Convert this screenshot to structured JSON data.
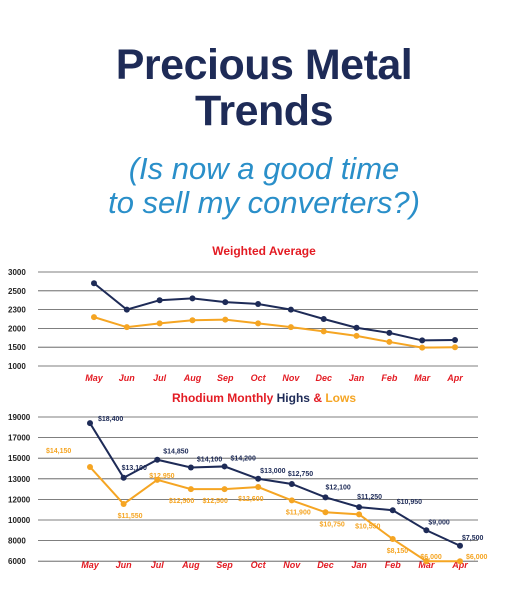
{
  "header": {
    "title_line1": "Precious Metal",
    "title_line2": "Trends",
    "subtitle_line1": "(Is now a good time",
    "subtitle_line2": "to sell my converters?)"
  },
  "colors": {
    "navy": "#1e2b57",
    "orange": "#f5a523",
    "red": "#e31b23",
    "blue": "#2a8fc9",
    "grid": "#555555"
  },
  "chart_data": [
    {
      "type": "line",
      "title": "Weighted Average",
      "categories": [
        "May",
        "Jun",
        "Jul",
        "Aug",
        "Sep",
        "Oct",
        "Nov",
        "Dec",
        "Jan",
        "Feb",
        "Mar",
        "Apr"
      ],
      "yticks": [
        "3000",
        "2500",
        "2300",
        "2000",
        "1500",
        "1000"
      ],
      "series": [
        {
          "color": "#1e2b57",
          "values": [
            2700,
            2300,
            2400,
            2420,
            2380,
            2360,
            2300,
            2150,
            2010,
            1880,
            1680,
            1690
          ]
        },
        {
          "color": "#f5a523",
          "values": [
            2180,
            2020,
            2080,
            2130,
            2140,
            2080,
            2020,
            1920,
            1800,
            1640,
            1490,
            1500
          ]
        }
      ]
    },
    {
      "type": "line",
      "title_parts": [
        "Rhodium Monthly ",
        "Highs",
        " & ",
        "Lows"
      ],
      "categories": [
        "May",
        "Jun",
        "Jul",
        "Aug",
        "Sep",
        "Oct",
        "Nov",
        "Dec",
        "Jan",
        "Feb",
        "Mar",
        "Apr"
      ],
      "yticks": [
        "19000",
        "17000",
        "15000",
        "13000",
        "12000",
        "10000",
        "8000",
        "6000"
      ],
      "series": [
        {
          "name": "Highs",
          "color": "#1e2b57",
          "values": [
            18400,
            13100,
            14850,
            14100,
            14200,
            13000,
            12750,
            12100,
            11250,
            10950,
            9000,
            7500
          ],
          "labels": [
            "$18,400",
            "$13,100",
            "$14,850",
            "$14,100",
            "$14,200",
            "$13,000",
            "$12,750",
            "$12,100",
            "$11,250",
            "$10,950",
            "$9,000",
            "$7,500"
          ]
        },
        {
          "name": "Lows",
          "color": "#f5a523",
          "values": [
            14150,
            11550,
            12950,
            12500,
            12500,
            12600,
            11900,
            10750,
            10550,
            8150,
            6000,
            6000
          ],
          "labels": [
            "$14,150",
            "$11,550",
            "$12,950",
            "$12,500",
            "$12,500",
            "$12,600",
            "$11,900",
            "$10,750",
            "$10,550",
            "$8,150",
            "$6,000",
            "$6,000"
          ]
        }
      ]
    }
  ]
}
